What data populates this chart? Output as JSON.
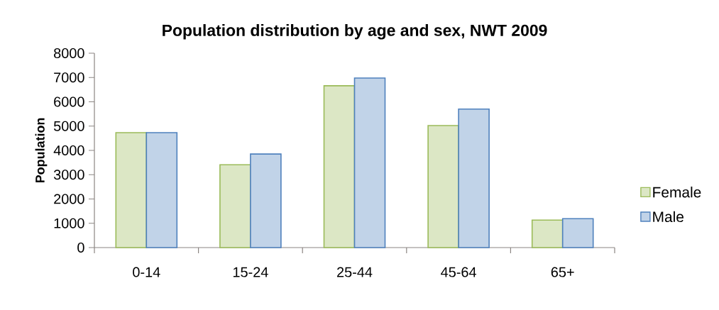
{
  "chart_data": {
    "type": "bar",
    "title": "Population distribution by age and sex, NWT 2009",
    "ylabel": "Population",
    "categories": [
      "0-14",
      "15-24",
      "25-44",
      "45-64",
      "65+"
    ],
    "series": [
      {
        "name": "Female",
        "color": "#9bbb59",
        "values": [
          4730,
          3410,
          6660,
          5020,
          1130
        ]
      },
      {
        "name": "Male",
        "color": "#4f81bd",
        "values": [
          4730,
          3850,
          6980,
          5700,
          1190
        ]
      }
    ],
    "ylim": [
      0,
      8000
    ],
    "yticks": [
      0,
      1000,
      2000,
      3000,
      4000,
      5000,
      6000,
      7000,
      8000
    ],
    "legend": "right"
  }
}
